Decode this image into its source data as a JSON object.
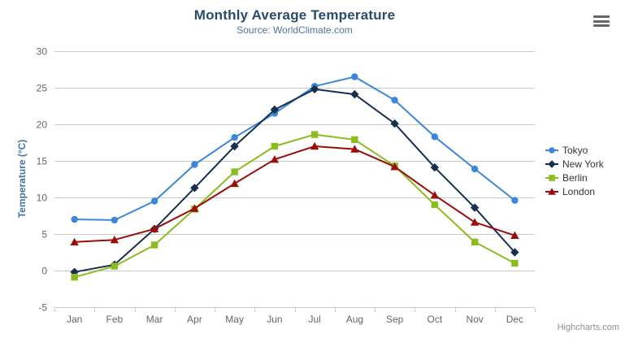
{
  "header": {
    "title": "Monthly Average Temperature",
    "subtitle": "Source: WorldClimate.com"
  },
  "menu": {
    "icon": "hamburger-icon"
  },
  "credits": {
    "label": "Highcharts.com"
  },
  "colors": {
    "title": "#274b6d",
    "subtitle": "#4d759e",
    "axis_title": "#4572a7",
    "tick_label": "#666666",
    "grid_line": "#c9c9c9",
    "axis_line": "#c0d0e0",
    "legend_text": "#333333",
    "credit_text": "#909090"
  },
  "chart_data": {
    "type": "line",
    "title": "Monthly Average Temperature",
    "subtitle": "Source: WorldClimate.com",
    "categories": [
      "Jan",
      "Feb",
      "Mar",
      "Apr",
      "May",
      "Jun",
      "Jul",
      "Aug",
      "Sep",
      "Oct",
      "Nov",
      "Dec"
    ],
    "xlabel": "",
    "ylabel": "Temperature (°C)",
    "ylim": [
      -5,
      30
    ],
    "yticks": [
      -5,
      0,
      5,
      10,
      15,
      20,
      25,
      30
    ],
    "grid": true,
    "legend_position": "right",
    "series": [
      {
        "name": "Tokyo",
        "color": "#3b87d9",
        "marker": "circle",
        "values": [
          7.0,
          6.9,
          9.5,
          14.5,
          18.2,
          21.5,
          25.2,
          26.5,
          23.3,
          18.3,
          13.9,
          9.6
        ]
      },
      {
        "name": "New York",
        "color": "#17304f",
        "marker": "diamond",
        "values": [
          -0.2,
          0.8,
          5.7,
          11.3,
          17.0,
          22.0,
          24.8,
          24.1,
          20.1,
          14.1,
          8.6,
          2.5
        ]
      },
      {
        "name": "Berlin",
        "color": "#8bbc21",
        "marker": "square",
        "values": [
          -0.9,
          0.6,
          3.5,
          8.4,
          13.5,
          17.0,
          18.6,
          17.9,
          14.3,
          9.0,
          3.9,
          1.0
        ]
      },
      {
        "name": "London",
        "color": "#9b0d0b",
        "marker": "triangle",
        "values": [
          3.9,
          4.2,
          5.7,
          8.5,
          11.9,
          15.2,
          17.0,
          16.6,
          14.2,
          10.3,
          6.6,
          4.8
        ]
      }
    ]
  }
}
